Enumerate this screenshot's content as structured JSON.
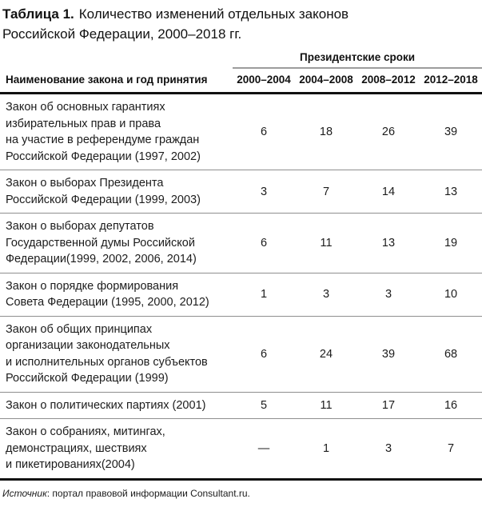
{
  "title": {
    "label": "Таблица 1.",
    "text": "Количество изменений отдельных законов\nРоссийской Федерации, 2000–2018 гг."
  },
  "table": {
    "group_header": "Президентские сроки",
    "name_header": "Наименование закона и год принятия",
    "period_headers": [
      "2000–2004",
      "2004–2008",
      "2008–2012",
      "2012–2018"
    ],
    "rows": [
      {
        "name": "Закон об основных гарантиях\nизбирательных прав и права\nна участие в референдуме граждан\nРоссийской Федерации (1997, 2002)",
        "values": [
          "6",
          "18",
          "26",
          "39"
        ]
      },
      {
        "name": "Закон о выборах Президента\nРоссийской Федерации (1999, 2003)",
        "values": [
          "3",
          "7",
          "14",
          "13"
        ]
      },
      {
        "name": "Закон о выборах депутатов\nГосударственной думы Российской\nФедерации(1999, 2002, 2006, 2014)",
        "values": [
          "6",
          "11",
          "13",
          "19"
        ]
      },
      {
        "name": "Закон о порядке формирования\nСовета Федерации (1995, 2000, 2012)",
        "values": [
          "1",
          "3",
          "3",
          "10"
        ]
      },
      {
        "name": "Закон об общих принципах\nорганизации законодательных\nи исполнительных органов субъектов\nРоссийской Федерации (1999)",
        "values": [
          "6",
          "24",
          "39",
          "68"
        ]
      },
      {
        "name": "Закон о политических партиях (2001)",
        "values": [
          "5",
          "11",
          "17",
          "16"
        ]
      },
      {
        "name": "Закон о собраниях, митингах,\nдемонстрациях, шествиях\nи пикетированиях(2004)",
        "values": [
          "—",
          "1",
          "3",
          "7"
        ]
      }
    ]
  },
  "footer": {
    "source_label": "Источник",
    "source_text": ": портал правовой информации Consultant.ru."
  },
  "colors": {
    "text": "#1b1b1b",
    "thick_rule": "#111111",
    "thin_rule": "#8e8e8e",
    "group_rule": "#9c9c9c",
    "background": "#ffffff"
  }
}
